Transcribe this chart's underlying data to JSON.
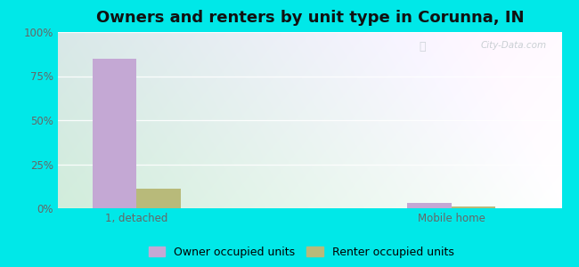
{
  "title": "Owners and renters by unit type in Corunna, IN",
  "categories": [
    "1, detached",
    "Mobile home"
  ],
  "owner_values": [
    85,
    3
  ],
  "renter_values": [
    11,
    1
  ],
  "owner_color": "#c4a8d4",
  "renter_color": "#b8ba7a",
  "owner_label": "Owner occupied units",
  "renter_label": "Renter occupied units",
  "background_color": "#00e8e8",
  "ylim": [
    0,
    100
  ],
  "yticks": [
    0,
    25,
    50,
    75,
    100
  ],
  "ytick_labels": [
    "0%",
    "25%",
    "50%",
    "75%",
    "100%"
  ],
  "bar_width": 0.28,
  "title_fontsize": 13,
  "legend_fontsize": 9,
  "tick_fontsize": 8.5,
  "watermark": "City-Data.com",
  "watermark_color": "#c0c8cc",
  "grid_color": "#e0e8e0",
  "tick_color": "#666666"
}
